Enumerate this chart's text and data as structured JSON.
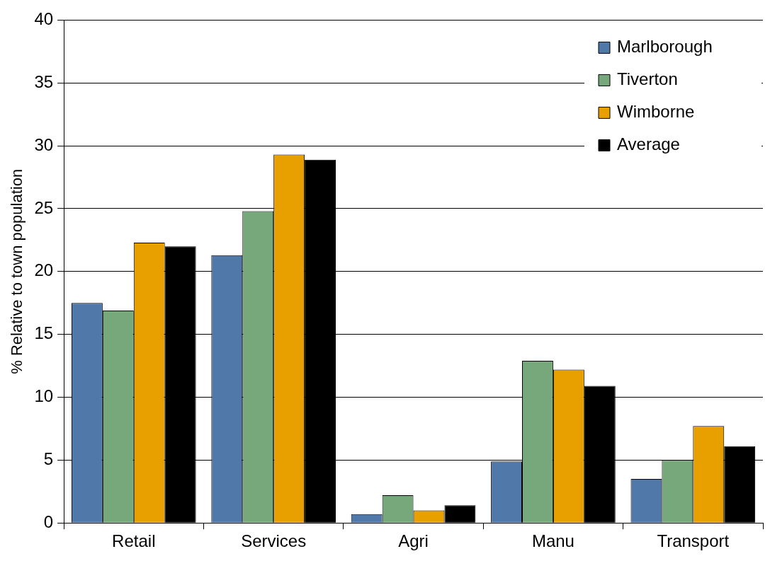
{
  "chart_data": {
    "type": "bar",
    "ylabel": "% Relative to town population",
    "categories": [
      "Retail",
      "Services",
      "Agri",
      "Manu",
      "Transport"
    ],
    "series": [
      {
        "name": "Marlborough",
        "color": "#5078a8",
        "values": [
          17.5,
          21.3,
          0.7,
          4.9,
          3.5
        ]
      },
      {
        "name": "Tiverton",
        "color": "#76a87c",
        "values": [
          16.9,
          24.8,
          2.2,
          12.9,
          5.0
        ]
      },
      {
        "name": "Wimborne",
        "color": "#e8a000",
        "values": [
          22.3,
          29.3,
          1.0,
          12.2,
          7.7
        ]
      },
      {
        "name": "Average",
        "color": "#000000",
        "values": [
          22.0,
          28.9,
          1.4,
          10.9,
          6.1
        ]
      }
    ],
    "ylim": [
      0,
      40
    ],
    "yticks": [
      0,
      5,
      10,
      15,
      20,
      25,
      30,
      35,
      40
    ],
    "grid": "y",
    "legend": "top right"
  }
}
